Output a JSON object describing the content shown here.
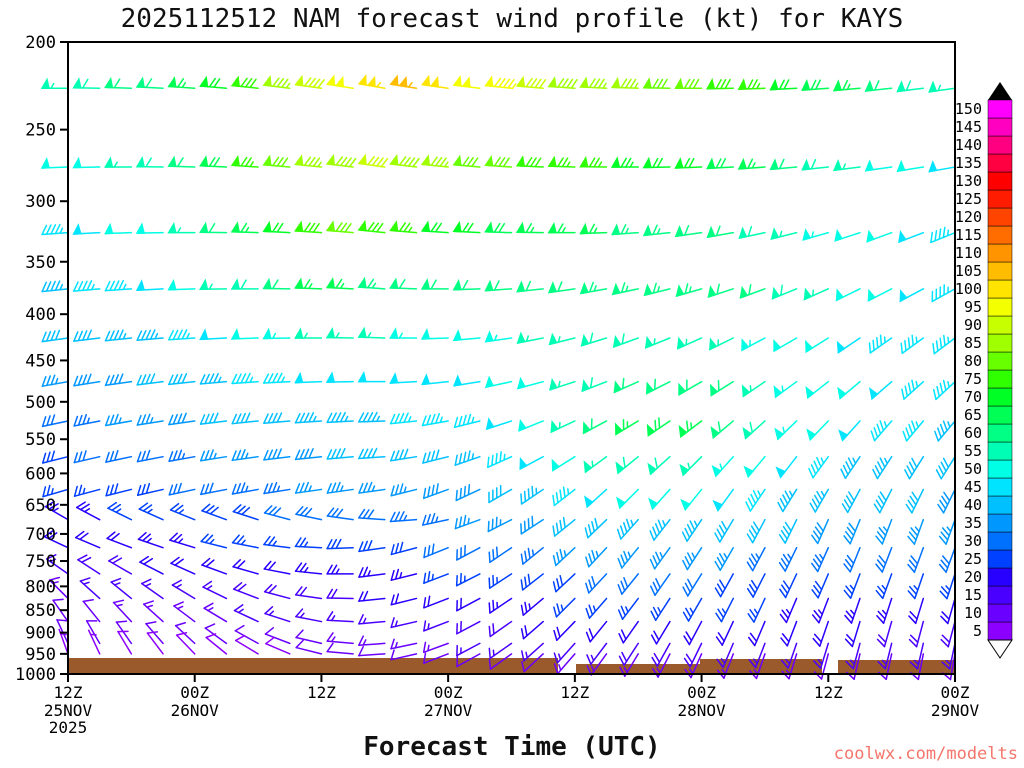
{
  "chart": {
    "title": "2025112512 NAM forecast wind profile (kt) for KAYS",
    "xlabel": "Forecast Time (UTC)",
    "watermark": "coolwx.com/modelts",
    "colors": {
      "watermark": "#f4756b",
      "axis": "#000000"
    }
  },
  "chart_data": {
    "type": "wind-barb-profile",
    "model": "NAM",
    "run": "2025112512",
    "station": "KAYS",
    "units": "kt",
    "y_axis": {
      "scale": "log-pressure",
      "range": [
        200,
        1000
      ],
      "tick_values": [
        200,
        250,
        300,
        350,
        400,
        450,
        500,
        550,
        600,
        650,
        700,
        750,
        800,
        850,
        900,
        950,
        1000
      ]
    },
    "x_axis": {
      "hours_range": [
        0,
        84
      ],
      "step_hours": 3,
      "tick_hours": [
        0,
        12,
        24,
        36,
        48,
        60,
        72,
        84
      ],
      "tick_labels": [
        "12Z",
        "00Z",
        "12Z",
        "00Z",
        "12Z",
        "00Z",
        "12Z",
        "00Z"
      ],
      "date_labels": [
        {
          "hour": 0,
          "text": "25NOV"
        },
        {
          "hour": 12,
          "text": "26NOV"
        },
        {
          "hour": 36,
          "text": "27NOV"
        },
        {
          "hour": 60,
          "text": "28NOV"
        },
        {
          "hour": 84,
          "text": "29NOV"
        }
      ],
      "year_label": {
        "hour": 0,
        "text": "2025"
      }
    },
    "colorbar": {
      "min": 5,
      "max": 150,
      "step": 5,
      "values": [
        5,
        10,
        15,
        20,
        25,
        30,
        35,
        40,
        45,
        50,
        55,
        60,
        65,
        70,
        75,
        80,
        85,
        90,
        95,
        100,
        105,
        110,
        115,
        120,
        125,
        130,
        135,
        140,
        145,
        150
      ],
      "colors": [
        "#8b00ff",
        "#6a00ff",
        "#4900ff",
        "#2800ff",
        "#0040ff",
        "#0070ff",
        "#0098ff",
        "#00c0ff",
        "#00e4ff",
        "#00ffe4",
        "#00ffb4",
        "#00ff84",
        "#00ff54",
        "#00ff24",
        "#30ff00",
        "#68ff00",
        "#a0ff00",
        "#c8ff00",
        "#f4ff00",
        "#ffe400",
        "#ffbc00",
        "#ff9400",
        "#ff6c00",
        "#ff4400",
        "#ff1c00",
        "#ff0000",
        "#ff0040",
        "#ff0080",
        "#ff00c0",
        "#ff00ff"
      ]
    },
    "ground": {
      "color": "#9b5a2b",
      "segments": [
        [
          68,
          558,
          658
        ],
        [
          576,
          700,
          664
        ],
        [
          700,
          822,
          659
        ],
        [
          838,
          955,
          660
        ]
      ]
    },
    "levels_hpa": [
      225,
      275,
      325,
      375,
      425,
      475,
      525,
      575,
      625,
      675,
      725,
      775,
      825,
      875,
      925,
      950
    ],
    "times_hours": [
      0,
      3,
      6,
      9,
      12,
      15,
      18,
      21,
      24,
      27,
      30,
      33,
      36,
      39,
      42,
      45,
      48,
      51,
      54,
      57,
      60,
      63,
      66,
      69,
      72,
      75,
      78,
      81,
      84
    ],
    "speeds_kt": [
      [
        55,
        58,
        60,
        62,
        65,
        70,
        78,
        85,
        92,
        98,
        103,
        105,
        102,
        98,
        95,
        90,
        88,
        85,
        85,
        82,
        80,
        78,
        75,
        72,
        68,
        65,
        60,
        58,
        55
      ],
      [
        50,
        52,
        55,
        58,
        62,
        68,
        75,
        80,
        85,
        88,
        90,
        88,
        85,
        82,
        80,
        78,
        76,
        75,
        73,
        72,
        70,
        68,
        65,
        62,
        58,
        55,
        52,
        50,
        48
      ],
      [
        46,
        48,
        50,
        52,
        56,
        60,
        66,
        72,
        78,
        80,
        78,
        75,
        72,
        70,
        68,
        66,
        65,
        65,
        64,
        63,
        62,
        60,
        58,
        56,
        54,
        52,
        50,
        48,
        46
      ],
      [
        44,
        45,
        46,
        48,
        52,
        55,
        58,
        62,
        65,
        66,
        64,
        62,
        60,
        60,
        60,
        60,
        62,
        63,
        64,
        64,
        63,
        62,
        60,
        58,
        55,
        52,
        50,
        48,
        46
      ],
      [
        40,
        42,
        43,
        44,
        46,
        48,
        50,
        53,
        55,
        56,
        55,
        54,
        52,
        52,
        53,
        55,
        57,
        58,
        58,
        57,
        56,
        55,
        53,
        52,
        50,
        48,
        47,
        46,
        45
      ],
      [
        36,
        38,
        39,
        40,
        42,
        44,
        45,
        47,
        48,
        49,
        48,
        48,
        48,
        48,
        50,
        52,
        55,
        58,
        60,
        62,
        62,
        60,
        57,
        54,
        52,
        50,
        48,
        46,
        45
      ],
      [
        32,
        34,
        35,
        36,
        38,
        40,
        41,
        42,
        43,
        44,
        44,
        45,
        45,
        46,
        48,
        52,
        56,
        60,
        65,
        68,
        66,
        62,
        58,
        54,
        51,
        49,
        47,
        45,
        44
      ],
      [
        28,
        30,
        31,
        32,
        34,
        36,
        37,
        38,
        39,
        40,
        40,
        41,
        42,
        43,
        45,
        48,
        52,
        55,
        58,
        58,
        56,
        53,
        50,
        48,
        46,
        44,
        43,
        42,
        41
      ],
      [
        26,
        27,
        28,
        29,
        30,
        32,
        33,
        34,
        35,
        36,
        36,
        37,
        38,
        39,
        41,
        43,
        46,
        49,
        52,
        52,
        50,
        48,
        46,
        44,
        43,
        42,
        41,
        40,
        39
      ],
      [
        23,
        24,
        25,
        26,
        27,
        28,
        29,
        30,
        31,
        32,
        32,
        33,
        34,
        35,
        36,
        38,
        40,
        42,
        44,
        44,
        43,
        42,
        41,
        40,
        39,
        38,
        37,
        36,
        36
      ],
      [
        20,
        21,
        22,
        23,
        24,
        25,
        26,
        27,
        27,
        28,
        28,
        29,
        30,
        31,
        32,
        33,
        35,
        36,
        37,
        37,
        36,
        35,
        34,
        34,
        33,
        32,
        32,
        31,
        31
      ],
      [
        17,
        18,
        19,
        20,
        20,
        21,
        22,
        22,
        23,
        23,
        24,
        24,
        25,
        26,
        27,
        28,
        29,
        30,
        31,
        31,
        30,
        29,
        29,
        28,
        28,
        27,
        27,
        26,
        26
      ],
      [
        14,
        15,
        16,
        16,
        17,
        17,
        18,
        18,
        19,
        19,
        20,
        20,
        21,
        22,
        23,
        24,
        25,
        26,
        26,
        26,
        26,
        25,
        25,
        24,
        24,
        23,
        23,
        22,
        22
      ],
      [
        12,
        12,
        13,
        13,
        14,
        14,
        15,
        15,
        15,
        16,
        16,
        17,
        17,
        18,
        19,
        20,
        21,
        21,
        22,
        22,
        22,
        21,
        21,
        20,
        20,
        20,
        19,
        19,
        19
      ],
      [
        10,
        10,
        10,
        11,
        11,
        11,
        12,
        12,
        12,
        13,
        13,
        13,
        14,
        15,
        15,
        16,
        17,
        17,
        18,
        18,
        18,
        17,
        17,
        17,
        16,
        16,
        16,
        15,
        15
      ],
      [
        7,
        7,
        8,
        8,
        8,
        9,
        9,
        9,
        10,
        10,
        10,
        10,
        11,
        11,
        12,
        12,
        13,
        13,
        14,
        14,
        14,
        13,
        13,
        13,
        12,
        12,
        12,
        12,
        12
      ]
    ],
    "dirs_deg": [
      [
        270,
        271,
        272,
        273,
        274,
        275,
        276,
        277,
        278,
        279,
        280,
        279,
        278,
        277,
        276,
        275,
        274,
        273,
        272,
        271,
        270,
        269,
        268,
        267,
        266,
        265,
        264,
        263,
        262
      ],
      [
        268,
        269,
        270,
        271,
        272,
        273,
        274,
        275,
        276,
        277,
        278,
        277,
        276,
        275,
        274,
        273,
        272,
        271,
        270,
        269,
        268,
        267,
        266,
        265,
        264,
        263,
        262,
        261,
        260
      ],
      [
        266,
        267,
        268,
        269,
        270,
        271,
        272,
        273,
        274,
        275,
        276,
        275,
        274,
        273,
        272,
        271,
        270,
        268,
        266,
        264,
        262,
        260,
        258,
        256,
        254,
        252,
        250,
        249,
        248
      ],
      [
        264,
        265,
        266,
        267,
        268,
        269,
        270,
        271,
        272,
        273,
        274,
        272,
        270,
        268,
        266,
        264,
        262,
        260,
        258,
        256,
        254,
        252,
        250,
        248,
        246,
        244,
        243,
        242,
        241
      ],
      [
        262,
        263,
        264,
        265,
        266,
        267,
        268,
        269,
        270,
        271,
        272,
        270,
        268,
        265,
        262,
        259,
        256,
        253,
        250,
        248,
        246,
        244,
        242,
        240,
        238,
        236,
        235,
        234,
        233
      ],
      [
        260,
        261,
        262,
        263,
        264,
        265,
        266,
        267,
        268,
        269,
        270,
        267,
        264,
        261,
        258,
        255,
        252,
        249,
        246,
        243,
        240,
        238,
        236,
        234,
        232,
        230,
        229,
        228,
        227
      ],
      [
        258,
        259,
        260,
        261,
        262,
        263,
        264,
        265,
        266,
        267,
        268,
        264,
        260,
        256,
        252,
        248,
        245,
        242,
        239,
        236,
        233,
        230,
        228,
        226,
        224,
        222,
        221,
        220,
        220
      ],
      [
        256,
        257,
        258,
        259,
        260,
        261,
        262,
        263,
        264,
        265,
        266,
        261,
        256,
        251,
        246,
        242,
        238,
        234,
        231,
        228,
        225,
        222,
        220,
        218,
        216,
        214,
        213,
        212,
        212
      ],
      [
        254,
        255,
        256,
        257,
        258,
        259,
        260,
        261,
        262,
        262,
        262,
        256,
        250,
        245,
        240,
        236,
        232,
        228,
        225,
        222,
        219,
        216,
        214,
        212,
        210,
        208,
        207,
        206,
        206
      ],
      [
        300,
        298,
        296,
        294,
        292,
        290,
        288,
        285,
        282,
        278,
        274,
        266,
        258,
        250,
        243,
        237,
        231,
        226,
        222,
        218,
        214,
        211,
        208,
        206,
        204,
        202,
        201,
        200,
        200
      ],
      [
        295,
        293,
        291,
        289,
        287,
        284,
        281,
        277,
        273,
        268,
        262,
        255,
        248,
        242,
        236,
        231,
        227,
        223,
        219,
        216,
        213,
        210,
        208,
        206,
        204,
        202,
        201,
        200,
        200
      ],
      [
        305,
        303,
        300,
        297,
        294,
        290,
        286,
        281,
        276,
        270,
        263,
        256,
        249,
        243,
        237,
        232,
        227,
        223,
        219,
        215,
        212,
        209,
        207,
        205,
        203,
        201,
        200,
        199,
        198
      ],
      [
        315,
        312,
        309,
        305,
        301,
        296,
        291,
        285,
        278,
        271,
        264,
        256,
        249,
        242,
        236,
        230,
        225,
        221,
        217,
        213,
        210,
        207,
        205,
        203,
        201,
        199,
        198,
        197,
        196
      ],
      [
        325,
        321,
        317,
        312,
        307,
        301,
        295,
        288,
        281,
        273,
        265,
        257,
        249,
        242,
        235,
        229,
        224,
        219,
        215,
        211,
        208,
        205,
        203,
        201,
        199,
        197,
        196,
        195,
        195
      ],
      [
        335,
        330,
        325,
        319,
        313,
        306,
        299,
        291,
        283,
        275,
        266,
        258,
        250,
        242,
        235,
        228,
        222,
        217,
        213,
        209,
        206,
        203,
        201,
        199,
        197,
        195,
        194,
        193,
        192
      ],
      [
        340,
        335,
        329,
        323,
        316,
        309,
        301,
        293,
        284,
        275,
        266,
        257,
        249,
        241,
        234,
        227,
        221,
        216,
        211,
        207,
        204,
        201,
        199,
        197,
        195,
        193,
        192,
        191,
        190
      ]
    ]
  }
}
